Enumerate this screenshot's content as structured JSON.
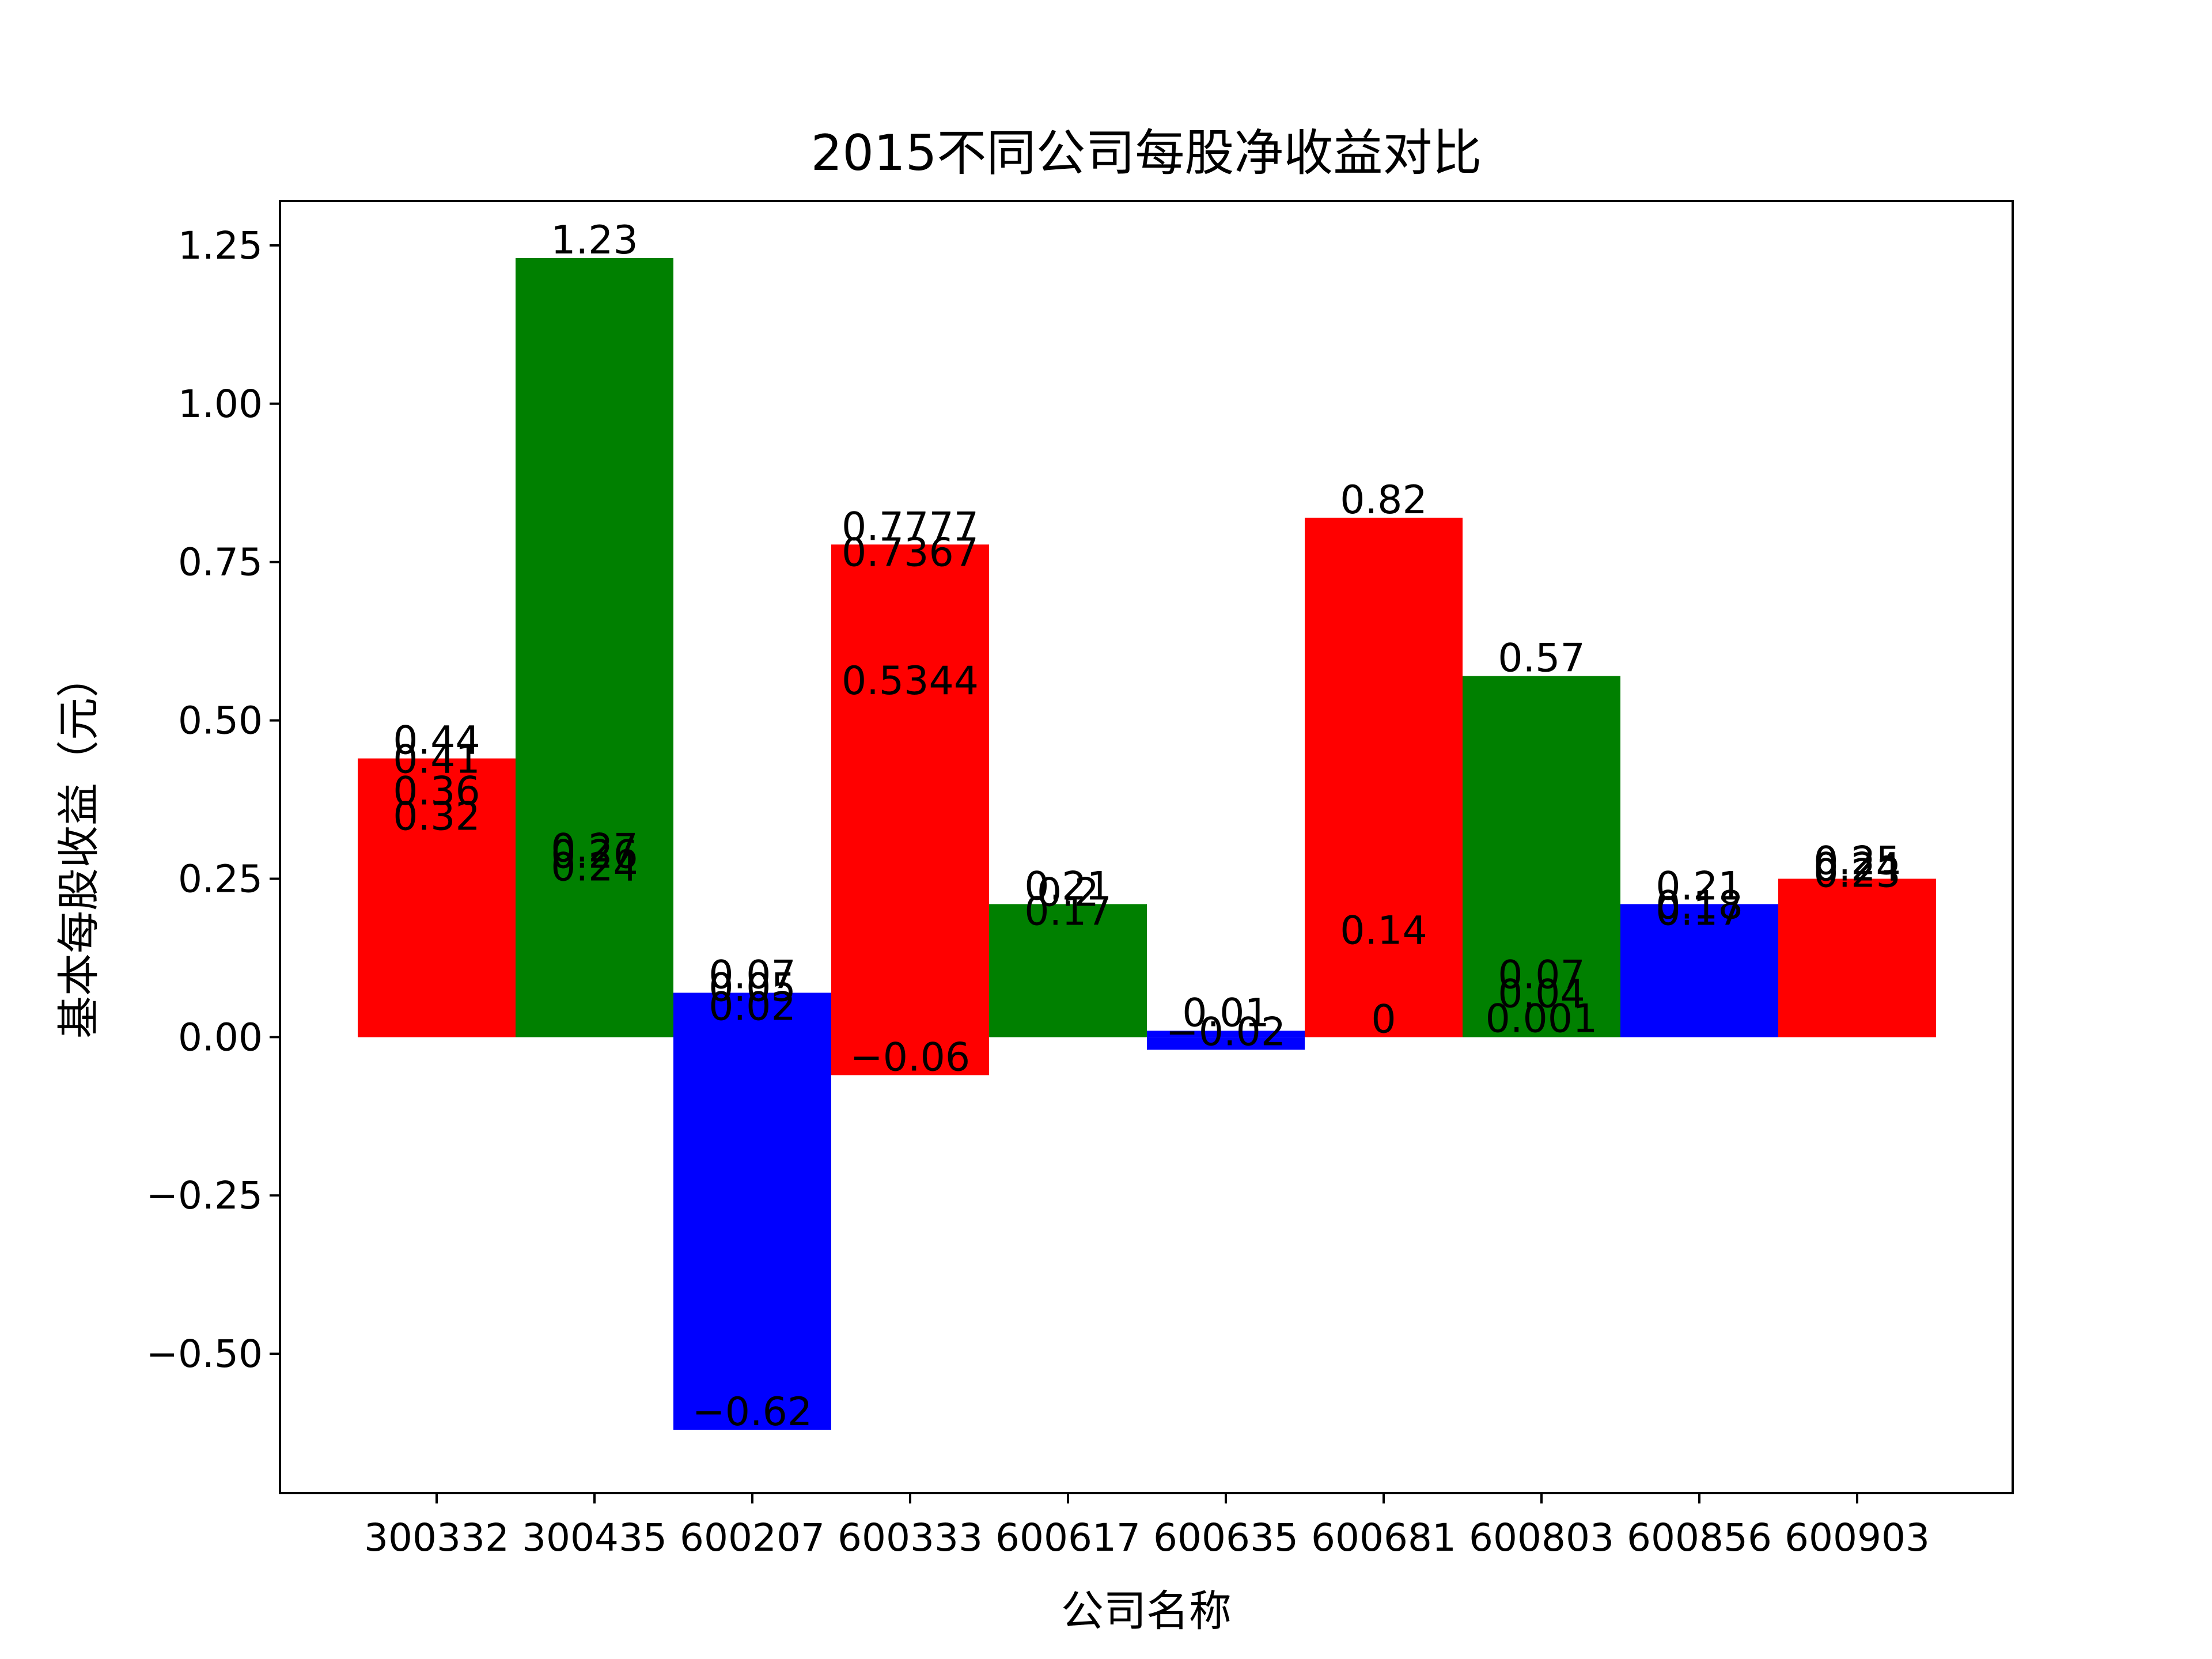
{
  "chart_data": {
    "type": "bar",
    "title": "2015不同公司每股净收益对比",
    "xlabel": "公司名称",
    "ylabel": "基本每股收益（元）",
    "ylim": [
      -0.72,
      1.32
    ],
    "yticks": [
      -0.5,
      -0.25,
      0.0,
      0.25,
      0.5,
      0.75,
      1.0,
      1.25
    ],
    "ytick_labels": [
      "−0.50",
      "−0.25",
      "0.00",
      "0.25",
      "0.50",
      "0.75",
      "1.00",
      "1.25"
    ],
    "grid": false,
    "categories": [
      "300332",
      "300435",
      "600207",
      "600333",
      "600617",
      "600635",
      "600681",
      "600803",
      "600856",
      "600903"
    ],
    "bars": [
      {
        "category": "300332",
        "values": [
          0.44,
          0.41,
          0.36,
          0.32
        ],
        "color": "#ff0000"
      },
      {
        "category": "300435",
        "values": [
          1.23,
          0.27,
          0.26,
          0.24
        ],
        "color": "#008000"
      },
      {
        "category": "600207",
        "values": [
          0.07,
          0.05,
          0.02,
          -0.62
        ],
        "color": "#0000ff"
      },
      {
        "category": "600333",
        "values": [
          0.7777,
          0.7367,
          0.5344,
          -0.06
        ],
        "color": "#ff0000"
      },
      {
        "category": "600617",
        "values": [
          0.21,
          0.2,
          0.17
        ],
        "color": "#008000"
      },
      {
        "category": "600635",
        "values": [
          0.01,
          -0.02
        ],
        "color": "#0000ff"
      },
      {
        "category": "600681",
        "values": [
          0.82,
          0.14,
          0.0
        ],
        "color": "#ff0000"
      },
      {
        "category": "600803",
        "values": [
          0.57,
          0.07,
          0.04,
          0.001
        ],
        "color": "#008000"
      },
      {
        "category": "600856",
        "values": [
          0.21,
          0.18,
          0.17
        ],
        "color": "#0000ff"
      },
      {
        "category": "600903",
        "values": [
          0.25,
          0.24,
          0.23
        ],
        "color": "#ff0000"
      }
    ]
  }
}
